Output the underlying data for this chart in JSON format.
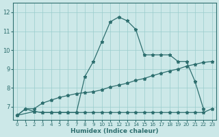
{
  "xlabel": "Humidex (Indice chaleur)",
  "bg_color": "#cce8e8",
  "line_color": "#2d6e6e",
  "grid_color": "#99cccc",
  "xlim": [
    -0.5,
    23.5
  ],
  "ylim": [
    6.3,
    12.5
  ],
  "xticks": [
    0,
    1,
    2,
    3,
    4,
    5,
    6,
    7,
    8,
    9,
    10,
    11,
    12,
    13,
    14,
    15,
    16,
    17,
    18,
    19,
    20,
    21,
    22,
    23
  ],
  "yticks": [
    7,
    8,
    9,
    10,
    11,
    12
  ],
  "line1_x": [
    0,
    1,
    2,
    3,
    4,
    5,
    6,
    7,
    8,
    9,
    10,
    11,
    12,
    13,
    14,
    15,
    16,
    17,
    18,
    19,
    20,
    21,
    22
  ],
  "line1_y": [
    6.55,
    6.9,
    6.75,
    6.7,
    6.7,
    6.7,
    6.7,
    6.7,
    8.6,
    9.4,
    10.45,
    11.5,
    11.75,
    11.55,
    11.1,
    9.75,
    9.75,
    9.75,
    9.75,
    9.4,
    9.4,
    8.35,
    6.9
  ],
  "line2_x": [
    0,
    1,
    2,
    3,
    4,
    5,
    6,
    7,
    8,
    9,
    10,
    11,
    12,
    13,
    14,
    15,
    16,
    17,
    18,
    19,
    20,
    21,
    22,
    23
  ],
  "line2_y": [
    6.55,
    6.9,
    6.9,
    7.2,
    7.35,
    7.5,
    7.6,
    7.7,
    7.75,
    7.8,
    7.9,
    8.05,
    8.15,
    8.25,
    8.4,
    8.5,
    8.65,
    8.78,
    8.9,
    9.0,
    9.15,
    9.25,
    9.35,
    9.4
  ],
  "line3_x": [
    0,
    2,
    3,
    4,
    5,
    6,
    7,
    8,
    9,
    10,
    11,
    12,
    13,
    14,
    15,
    16,
    17,
    18,
    19,
    20,
    21,
    22,
    23
  ],
  "line3_y": [
    6.55,
    6.75,
    6.7,
    6.7,
    6.7,
    6.7,
    6.7,
    6.7,
    6.7,
    6.7,
    6.7,
    6.7,
    6.7,
    6.7,
    6.7,
    6.7,
    6.7,
    6.7,
    6.7,
    6.7,
    6.7,
    6.7,
    6.9
  ]
}
